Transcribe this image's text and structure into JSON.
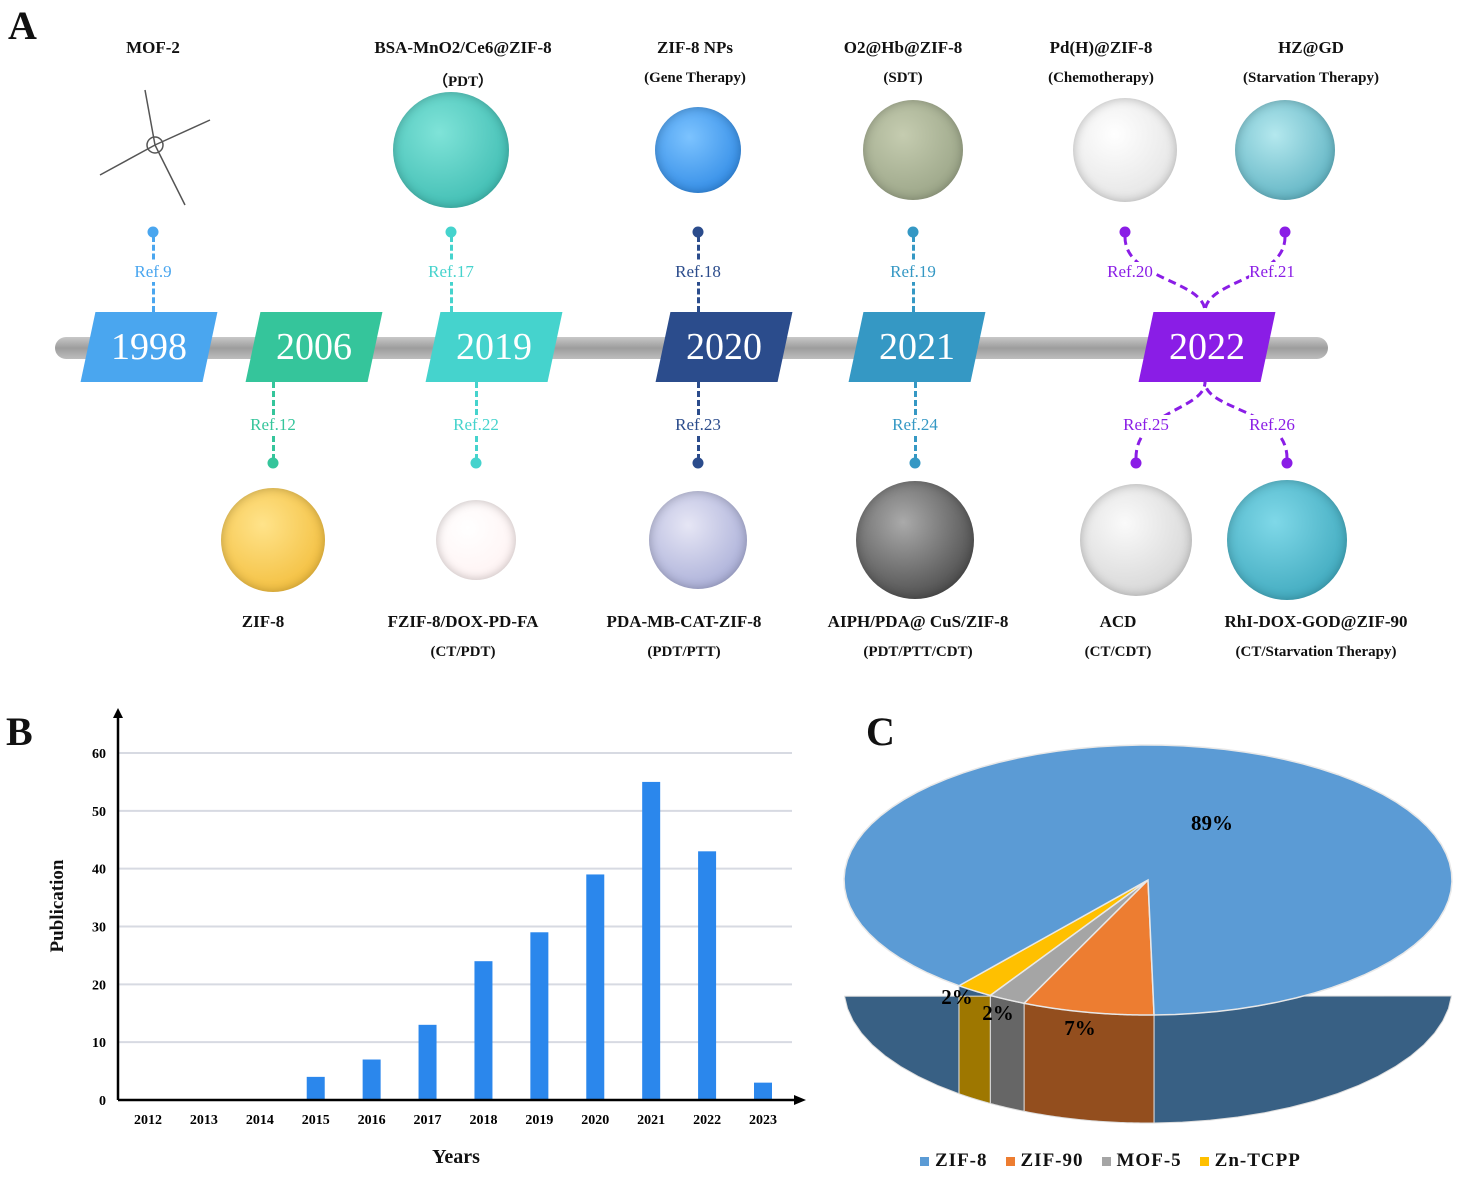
{
  "panels": {
    "a": "A",
    "b": "B",
    "c": "C"
  },
  "timeline": {
    "years": [
      {
        "label": "1998",
        "color": "#4aa6ef"
      },
      {
        "label": "2006",
        "color": "#35c59b"
      },
      {
        "label": "2019",
        "color": "#45d3cd"
      },
      {
        "label": "2020",
        "color": "#2b4c8c"
      },
      {
        "label": "2021",
        "color": "#3598c4"
      },
      {
        "label": "2022",
        "color": "#8a1de6"
      }
    ],
    "top": [
      {
        "name": "MOF-2",
        "sub": "",
        "ref": "Ref.9",
        "color": "#4aa6ef"
      },
      {
        "name": "BSA-MnO2/Ce6@ZIF-8",
        "sub": "（PDT）",
        "ref": "Ref.17",
        "color": "#45d3cd"
      },
      {
        "name": "ZIF-8 NPs",
        "sub": "(Gene Therapy)",
        "ref": "Ref.18",
        "color": "#2b4c8c"
      },
      {
        "name": "O2@Hb@ZIF-8",
        "sub": "(SDT)",
        "ref": "Ref.19",
        "color": "#3598c4"
      },
      {
        "name": "Pd(H)@ZIF-8",
        "sub": "(Chemotherapy)",
        "ref": "Ref.20",
        "color": "#8a1de6"
      },
      {
        "name": "HZ@GD",
        "sub": "(Starvation Therapy)",
        "ref": "Ref.21",
        "color": "#8a1de6"
      }
    ],
    "bottom": [
      {
        "name": "ZIF-8",
        "sub": "",
        "ref": "Ref.12",
        "color": "#35c59b"
      },
      {
        "name": "FZIF-8/DOX-PD-FA",
        "sub": "(CT/PDT)",
        "ref": "Ref.22",
        "color": "#45d3cd"
      },
      {
        "name": "PDA-MB-CAT-ZIF-8",
        "sub": "(PDT/PTT)",
        "ref": "Ref.23",
        "color": "#2b4c8c"
      },
      {
        "name": "AIPH/PDA@ CuS/ZIF-8",
        "sub": "(PDT/PTT/CDT)",
        "ref": "Ref.24",
        "color": "#3598c4"
      },
      {
        "name": "ACD",
        "sub": "(CT/CDT)",
        "ref": "Ref.25",
        "color": "#8a1de6"
      },
      {
        "name": "RhI-DOX-GOD@ZIF-90",
        "sub": "(CT/Starvation Therapy)",
        "ref": "Ref.26",
        "color": "#8a1de6"
      }
    ]
  },
  "chart_data": [
    {
      "type": "bar",
      "categories": [
        "2012",
        "2013",
        "2014",
        "2015",
        "2016",
        "2017",
        "2018",
        "2019",
        "2020",
        "2021",
        "2022",
        "2023"
      ],
      "values": [
        0,
        0,
        0,
        4,
        7,
        13,
        24,
        29,
        39,
        55,
        43,
        3
      ],
      "xlabel": "Years",
      "ylabel": "Publication",
      "ylim": [
        0,
        60
      ],
      "yticks": [
        "0",
        "10",
        "20",
        "30",
        "40",
        "50",
        "60"
      ],
      "grid": true,
      "color": "#2b87ec"
    },
    {
      "type": "pie",
      "style": "3d",
      "slices": [
        {
          "name": "ZIF-8",
          "value": 89,
          "label": "89%",
          "color": "#5b9bd5"
        },
        {
          "name": "ZIF-90",
          "value": 7,
          "label": "7%",
          "color": "#ed7d31"
        },
        {
          "name": "MOF-5",
          "value": 2,
          "label": "2%",
          "color": "#a5a5a5"
        },
        {
          "name": "Zn-TCPP",
          "value": 2,
          "label": "2%",
          "color": "#ffc000"
        }
      ],
      "legend": "bottom"
    }
  ]
}
